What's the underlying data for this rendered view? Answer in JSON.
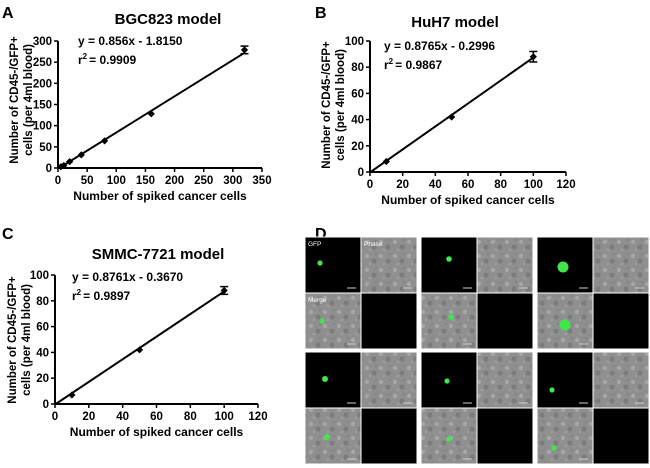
{
  "panel_letters": [
    "A",
    "B",
    "C",
    "D"
  ],
  "chart_data": [
    {
      "type": "scatter",
      "title": "BGC823 model",
      "xlabel": "Number of spiked cancer cells",
      "ylabel": "Number of CD45-/GFP+ cells (per 4ml blood)",
      "xlim": [
        0,
        350
      ],
      "ylim": [
        0,
        300
      ],
      "xticks": [
        0,
        50,
        100,
        150,
        200,
        250,
        300,
        350
      ],
      "yticks": [
        0,
        50,
        100,
        150,
        200,
        250,
        300
      ],
      "series": [
        {
          "x": [
            5,
            10,
            20,
            40,
            80,
            160,
            320
          ],
          "y": [
            3,
            6,
            15,
            31,
            64,
            128,
            279
          ],
          "yerr": [
            0,
            0,
            0,
            0,
            0,
            0,
            9
          ]
        }
      ],
      "fit": {
        "slope": 0.856,
        "intercept": -1.815
      },
      "equation": "y = 0.856x - 1.8150",
      "r2_value": "= 0.9909",
      "grid": false
    },
    {
      "type": "scatter",
      "title": "HuH7 model",
      "xlabel": "Number of spiked cancer cells",
      "ylabel": "Number of CD45-/GFP+ cells (per 4ml blood)",
      "xlim": [
        0,
        120
      ],
      "ylim": [
        0,
        100
      ],
      "xticks": [
        0,
        20,
        40,
        60,
        80,
        100,
        120
      ],
      "yticks": [
        0,
        20,
        40,
        60,
        80,
        100
      ],
      "series": [
        {
          "x": [
            10,
            50,
            100
          ],
          "y": [
            8,
            42,
            88
          ],
          "yerr": [
            0,
            0,
            4
          ]
        }
      ],
      "fit": {
        "slope": 0.8765,
        "intercept": -0.2996
      },
      "equation": "y = 0.8765x - 0.2996",
      "r2_value": "= 0.9867",
      "grid": false
    },
    {
      "type": "scatter",
      "title": "SMMC-7721 model",
      "xlabel": "Number of spiked cancer cells",
      "ylabel": "Number of CD45-/GFP+ cells (per 4ml blood)",
      "xlim": [
        0,
        120
      ],
      "ylim": [
        0,
        100
      ],
      "xticks": [
        0,
        20,
        40,
        60,
        80,
        100,
        120
      ],
      "yticks": [
        0,
        20,
        40,
        60,
        80,
        100
      ],
      "series": [
        {
          "x": [
            10,
            50,
            100
          ],
          "y": [
            7,
            42,
            88
          ],
          "yerr": [
            0,
            0,
            3
          ]
        }
      ],
      "fit": {
        "slope": 0.8761,
        "intercept": -0.367
      },
      "equation": "y = 0.8761x - 0.3670",
      "r2_value": "= 0.9897",
      "grid": false
    }
  ],
  "micrographs": {
    "channel_labels": [
      "GFP",
      "Phase",
      "Merge"
    ],
    "colors": {
      "gfp": "#3fe84a",
      "background": "#000000",
      "phase": "#8c8c8c"
    }
  }
}
